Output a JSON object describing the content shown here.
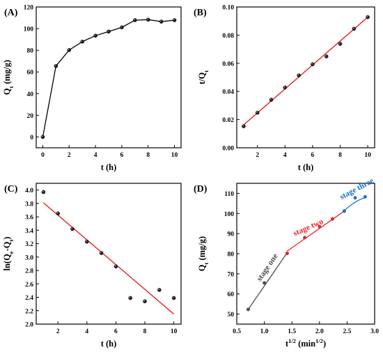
{
  "chart_data": [
    {
      "panel": "(A)",
      "type": "line",
      "xlabel": "t (h)",
      "ylabel": {
        "main": "Q",
        "sub": "t",
        "rest": " (mg/g)"
      },
      "xlim": [
        -0.5,
        10.5
      ],
      "ylim": [
        -10,
        120
      ],
      "xticks": [
        0,
        2,
        4,
        6,
        8,
        10
      ],
      "yticks": [
        0,
        20,
        40,
        60,
        80,
        100,
        120
      ],
      "x": [
        0,
        1,
        2,
        3,
        4,
        5,
        6,
        7,
        8,
        9,
        10
      ],
      "y": [
        0,
        65.5,
        80.2,
        88.0,
        93.5,
        97.3,
        101.2,
        107.8,
        108.3,
        106.5,
        107.8
      ],
      "line_color": "#000000",
      "marker_color": "#1a1a1a"
    },
    {
      "panel": "(B)",
      "type": "scatter",
      "xlabel": "t (h)",
      "ylabel": {
        "main": "t/Q",
        "sub": "t",
        "rest": ""
      },
      "xlim": [
        0.5,
        10.5
      ],
      "ylim": [
        0.0,
        0.1
      ],
      "xticks": [
        2,
        4,
        6,
        8,
        10
      ],
      "yticks": [
        0.0,
        0.02,
        0.04,
        0.06,
        0.08,
        0.1
      ],
      "ytick_labels": [
        "0.00",
        "0.02",
        "0.04",
        "0.06",
        "0.08",
        "0.10"
      ],
      "x": [
        1,
        2,
        3,
        4,
        5,
        6,
        7,
        8,
        9,
        10
      ],
      "y": [
        0.0153,
        0.0249,
        0.0341,
        0.0428,
        0.0514,
        0.0593,
        0.0649,
        0.0738,
        0.0845,
        0.0928
      ],
      "fit": {
        "x": [
          1,
          10
        ],
        "y": [
          0.0163,
          0.0928
        ],
        "color": "#e8141a"
      }
    },
    {
      "panel": "(C)",
      "type": "scatter",
      "xlabel": "t (h)",
      "ylabel": {
        "main": "ln(Q",
        "sub": "e",
        "rest": "-Q",
        "sub2": "t",
        "rest2": ")"
      },
      "xlim": [
        0.5,
        10.5
      ],
      "ylim": [
        2.0,
        4.1
      ],
      "xticks": [
        2,
        4,
        6,
        8,
        10
      ],
      "yticks": [
        2.0,
        2.2,
        2.4,
        2.6,
        2.8,
        3.0,
        3.2,
        3.4,
        3.6,
        3.8,
        4.0
      ],
      "ytick_labels": [
        "2.0",
        "2.2",
        "2.4",
        "2.6",
        "2.8",
        "3.0",
        "3.2",
        "3.4",
        "3.6",
        "3.8",
        "4.0"
      ],
      "x": [
        1,
        2,
        3,
        4,
        5,
        6,
        7,
        8,
        9,
        10
      ],
      "y": [
        3.97,
        3.65,
        3.42,
        3.23,
        3.06,
        2.86,
        2.39,
        2.34,
        2.51,
        2.39
      ],
      "fit": {
        "x": [
          1,
          10
        ],
        "y": [
          3.81,
          2.15
        ],
        "color": "#e8141a"
      }
    },
    {
      "panel": "(D)",
      "type": "scatter",
      "xlabel": {
        "main": "t",
        "sup": "1/2",
        "rest": " (min",
        "sup2": "1/2",
        "rest2": ")"
      },
      "ylabel": {
        "main": "Q",
        "sub": "t",
        "rest": " (mg/g)"
      },
      "xlim": [
        0.5,
        3.0
      ],
      "ylim": [
        45,
        115
      ],
      "xticks": [
        0.5,
        1.0,
        1.5,
        2.0,
        2.5,
        3.0
      ],
      "xtick_labels": [
        "0.5",
        "1.0",
        "1.5",
        "2.0",
        "2.5",
        "3.0"
      ],
      "yticks": [
        50,
        60,
        70,
        80,
        90,
        100,
        110
      ],
      "series": [
        {
          "name": "stage one",
          "color": "#4a4a4a",
          "x": [
            0.707,
            1.0,
            1.414
          ],
          "y": [
            52.3,
            65.5,
            80.2
          ],
          "fit": {
            "x": [
              0.707,
              1.414
            ],
            "y": [
              52.3,
              80.5
            ]
          }
        },
        {
          "name": "stage two",
          "color": "#e8242a",
          "x": [
            1.414,
            1.732,
            2.0,
            2.236,
            2.449
          ],
          "y": [
            80.2,
            88.0,
            93.5,
            97.3,
            101.2
          ],
          "fit": {
            "x": [
              1.414,
              2.449
            ],
            "y": [
              81.3,
              101.2
            ]
          }
        },
        {
          "name": "stage three",
          "color": "#1a6fd0",
          "x": [
            2.449,
            2.646,
            2.828
          ],
          "y": [
            101.2,
            107.8,
            108.3
          ],
          "fit": {
            "x": [
              2.449,
              2.646,
              2.828
            ],
            "y": [
              101.5,
              105.6,
              107.9
            ],
            "curve": true
          }
        }
      ]
    }
  ]
}
